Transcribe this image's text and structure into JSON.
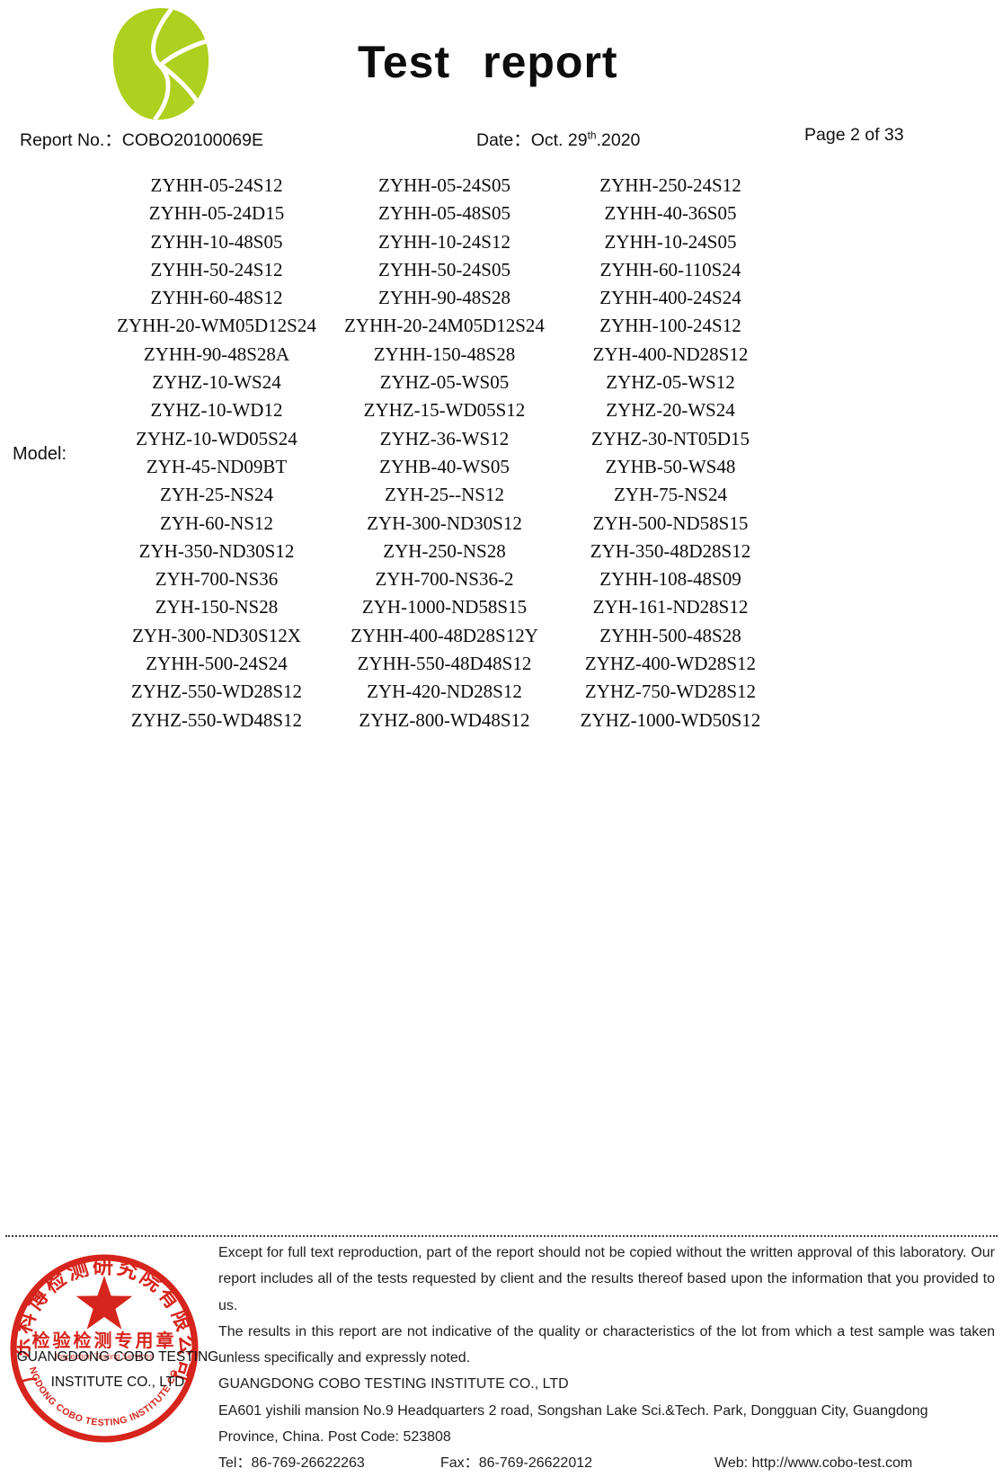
{
  "header": {
    "title_word1": "Test",
    "title_word2": "report",
    "report_no_label": "Report No.：",
    "report_no_value": "COBO20100069E",
    "date_label": "Date：",
    "date_day": "Oct. 29",
    "date_sup": "th",
    "date_year": ".2020",
    "page_label": "Page 2 of 33",
    "logo_color": "#aed01e"
  },
  "model_section": {
    "label": "Model:",
    "rows": [
      [
        "ZYHH-05-24S12",
        "ZYHH-05-24S05",
        "ZYHH-250-24S12"
      ],
      [
        "ZYHH-05-24D15",
        "ZYHH-05-48S05",
        "ZYHH-40-36S05"
      ],
      [
        "ZYHH-10-48S05",
        "ZYHH-10-24S12",
        "ZYHH-10-24S05"
      ],
      [
        "ZYHH-50-24S12",
        "ZYHH-50-24S05",
        "ZYHH-60-110S24"
      ],
      [
        "ZYHH-60-48S12",
        "ZYHH-90-48S28",
        "ZYHH-400-24S24"
      ],
      [
        "ZYHH-20-WM05D12S24",
        "ZYHH-20-24M05D12S24",
        "ZYHH-100-24S12"
      ],
      [
        "ZYHH-90-48S28A",
        "ZYHH-150-48S28",
        "ZYH-400-ND28S12"
      ],
      [
        "ZYHZ-10-WS24",
        "ZYHZ-05-WS05",
        "ZYHZ-05-WS12"
      ],
      [
        "ZYHZ-10-WD12",
        "ZYHZ-15-WD05S12",
        "ZYHZ-20-WS24"
      ],
      [
        "ZYHZ-10-WD05S24",
        "ZYHZ-36-WS12",
        "ZYHZ-30-NT05D15"
      ],
      [
        "ZYH-45-ND09BT",
        "ZYHB-40-WS05",
        "ZYHB-50-WS48"
      ],
      [
        "ZYH-25-NS24",
        "ZYH-25--NS12",
        "ZYH-75-NS24"
      ],
      [
        "ZYH-60-NS12",
        "ZYH-300-ND30S12",
        "ZYH-500-ND58S15"
      ],
      [
        "ZYH-350-ND30S12",
        "ZYH-250-NS28",
        "ZYH-350-48D28S12"
      ],
      [
        "ZYH-700-NS36",
        "ZYH-700-NS36-2",
        "ZYHH-108-48S09"
      ],
      [
        "ZYH-150-NS28",
        "ZYH-1000-ND58S15",
        "ZYH-161-ND28S12"
      ],
      [
        "ZYH-300-ND30S12X",
        "ZYHH-400-48D28S12Y",
        "ZYHH-500-48S28"
      ],
      [
        "ZYHH-500-24S24",
        "ZYHH-550-48D48S12",
        "ZYHZ-400-WD28S12"
      ],
      [
        "ZYHZ-550-WD28S12",
        "ZYH-420-ND28S12",
        "ZYHZ-750-WD28S12"
      ],
      [
        "ZYHZ-550-WD48S12",
        "ZYHZ-800-WD48S12",
        "ZYHZ-1000-WD50S12"
      ]
    ]
  },
  "footer": {
    "disclaimer_lines": [
      "Except for full text reproduction, part of the report should not be copied without the written approval of this laboratory. Our",
      "report includes all of the tests requested by client and the results thereof based upon the information that you provided to us.",
      "The results in this report are not indicative of the quality or characteristics of the lot from which a test sample was taken",
      "unless specifically and expressly noted."
    ],
    "company": "GUANGDONG COBO TESTING INSTITUTE CO., LTD",
    "address_line1": "EA601 yishili mansion No.9 Headquarters 2 road, Songshan Lake Sci.&Tech. Park, Dongguan City, Guangdong",
    "address_line2": "Province, China. Post Code: 523808",
    "tel_label": "Tel：",
    "tel_value": "86-769-26622263",
    "fax_label": "Fax：",
    "fax_value": "86-769-26622012",
    "web_label": "Web: ",
    "web_value": "http://www.cobo-test.com",
    "left_company_line1": "GUANGDONG COBO TESTING",
    "left_company_line2": "INSTITUTE CO., LTD"
  },
  "stamp": {
    "ring_color": "#d6251c",
    "top_text": "广东科博检测研究院有限公司",
    "center_label": "检验检测专用章",
    "sub_label": "Inspection Testing Services",
    "bottom_arc_text": "GUANGDONG COBO TESTING INSTITUTE CO.,LTD"
  }
}
